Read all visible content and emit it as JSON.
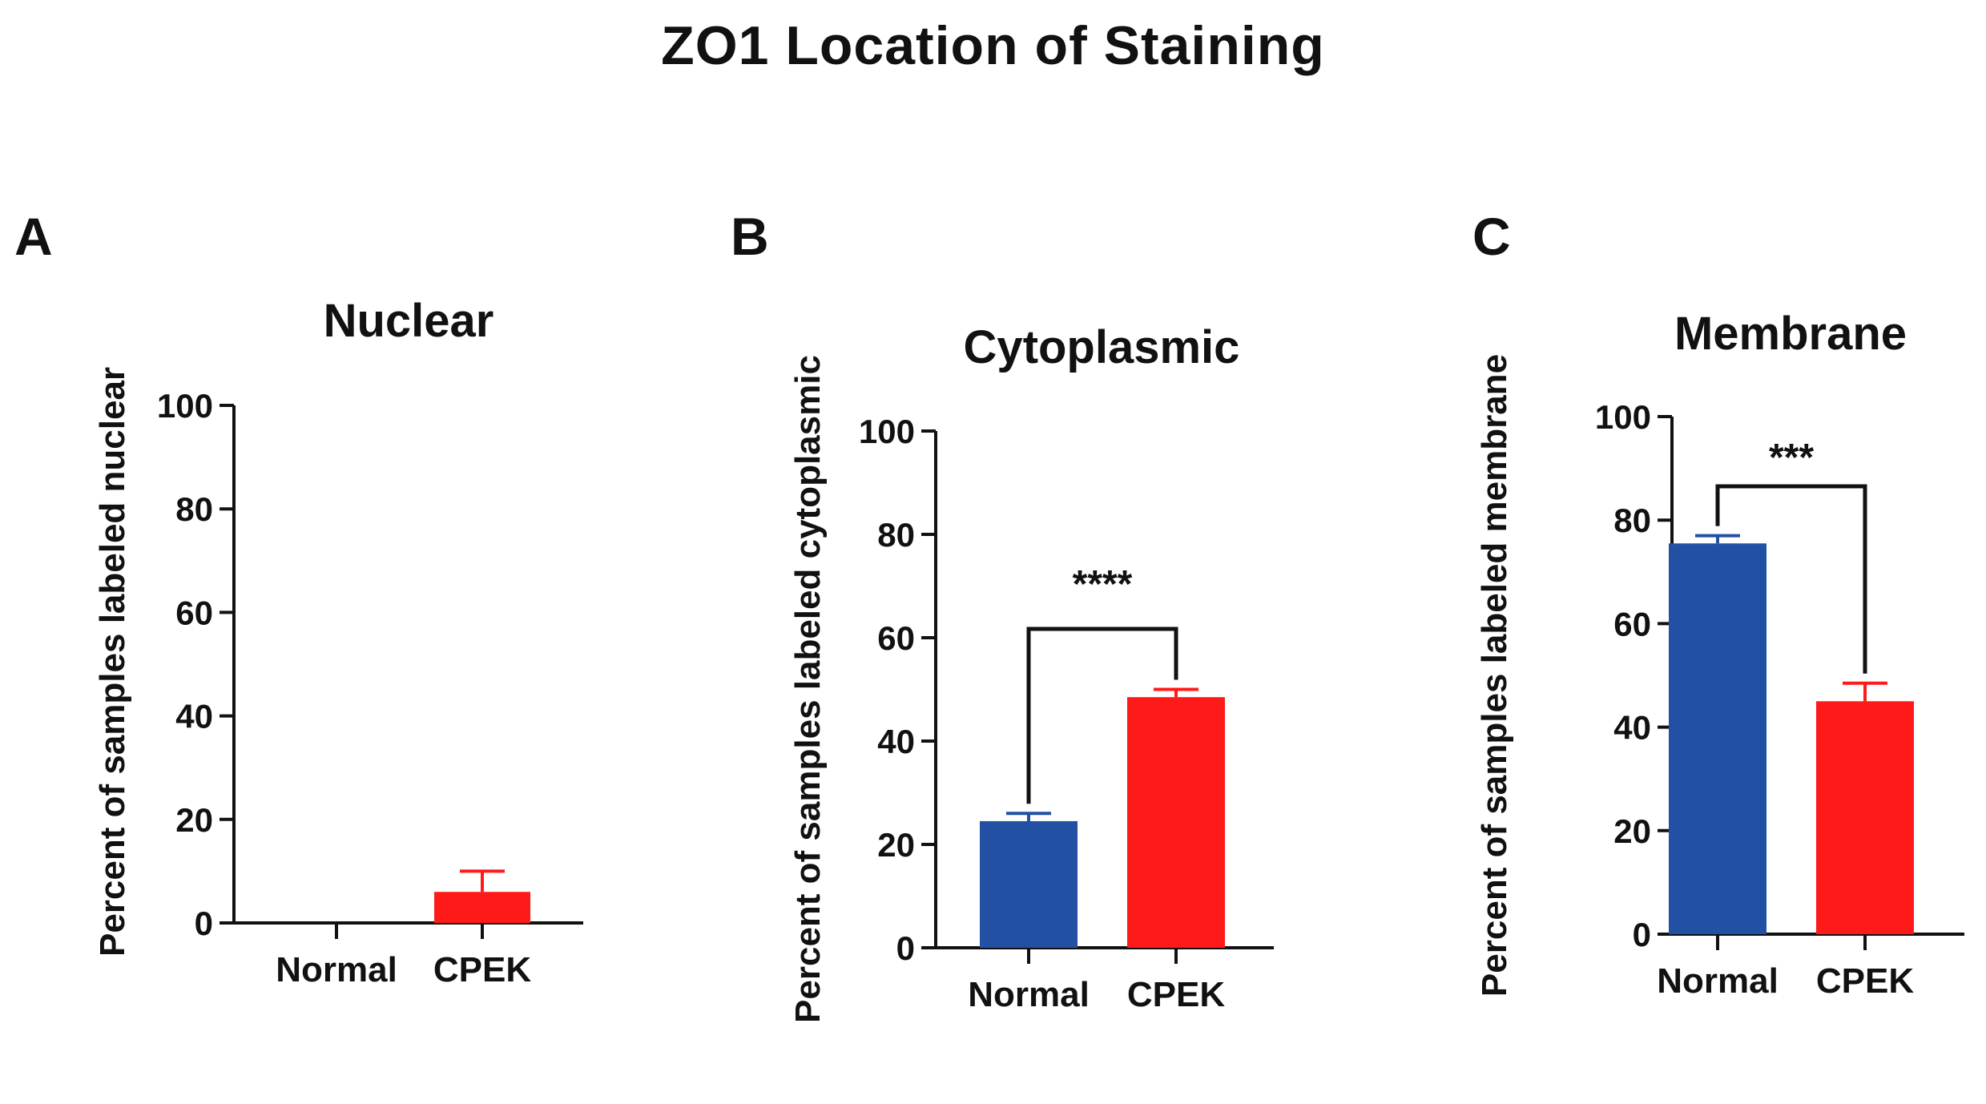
{
  "title": "ZO1 Location of Staining",
  "colors": {
    "normal": "#2251A4",
    "cpek": "#FF1A1A",
    "axis": "#111111"
  },
  "chart_data": [
    {
      "panel": "A",
      "type": "bar",
      "title": "Nuclear",
      "ylabel": "Percent of samples labeled nuclear",
      "xlabel": "",
      "categories": [
        "Normal",
        "CPEK"
      ],
      "values": [
        0,
        6
      ],
      "errors": [
        0,
        4
      ],
      "ylim": [
        0,
        100
      ],
      "yticks": [
        0,
        20,
        40,
        60,
        80,
        100
      ],
      "significance": ""
    },
    {
      "panel": "B",
      "type": "bar",
      "title": "Cytoplasmic",
      "ylabel": "Percent of samples labeled cytoplasmic",
      "xlabel": "",
      "categories": [
        "Normal",
        "CPEK"
      ],
      "values": [
        24.5,
        48.5
      ],
      "errors": [
        1.5,
        1.5
      ],
      "ylim": [
        0,
        100
      ],
      "yticks": [
        0,
        20,
        40,
        60,
        80,
        100
      ],
      "significance": "****"
    },
    {
      "panel": "C",
      "type": "bar",
      "title": "Membrane",
      "ylabel": "Percent of samples labeled membrane",
      "xlabel": "",
      "categories": [
        "Normal",
        "CPEK"
      ],
      "values": [
        75.5,
        45
      ],
      "errors": [
        1.5,
        3.5
      ],
      "ylim": [
        0,
        100
      ],
      "yticks": [
        0,
        20,
        40,
        60,
        80,
        100
      ],
      "significance": "***"
    }
  ]
}
